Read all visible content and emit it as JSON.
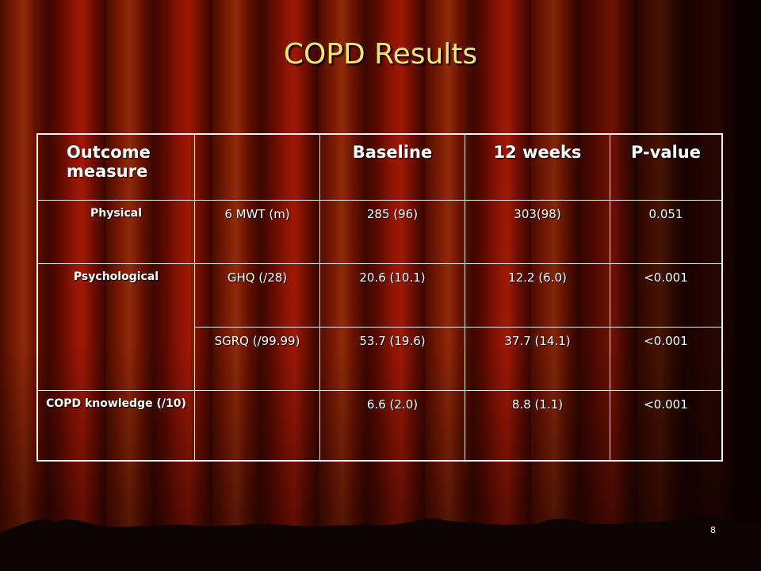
{
  "slide": {
    "title": "COPD Results",
    "page_number": "8"
  },
  "table": {
    "headers": [
      "Outcome measure",
      "",
      "Baseline",
      "12 weeks",
      "P-value"
    ],
    "rows": [
      {
        "category": "Physical",
        "measure": "6 MWT (m)",
        "baseline": "285 (96)",
        "week12": "303(98)",
        "pvalue": "0.051"
      },
      {
        "category": "Psychological",
        "measure": "GHQ (/28)",
        "baseline": "20.6 (10.1)",
        "week12": "12.2 (6.0)",
        "pvalue": "<0.001"
      },
      {
        "category": "",
        "measure": "SGRQ (/99.99)",
        "baseline": "53.7 (19.6)",
        "week12": "37.7 (14.1)",
        "pvalue": "<0.001"
      },
      {
        "category": "COPD knowledge (/10)",
        "measure": "",
        "baseline": "6.6 (2.0)",
        "week12": "8.8 (1.1)",
        "pvalue": "<0.001"
      }
    ]
  }
}
